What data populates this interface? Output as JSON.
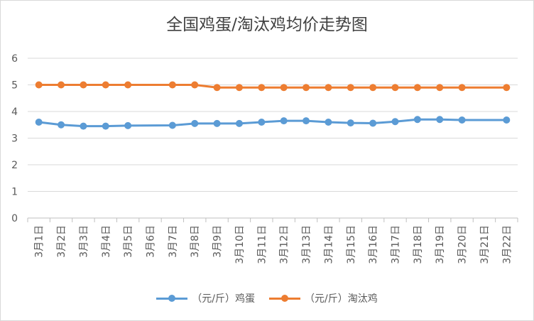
{
  "chart_data": {
    "type": "line",
    "title": "全国鸡蛋/淘汰鸡均价走势图",
    "categories": [
      "3月1日",
      "3月2日",
      "3月3日",
      "3月4日",
      "3月5日",
      "3月6日",
      "3月7日",
      "3月8日",
      "3月9日",
      "3月10日",
      "3月11日",
      "3月12日",
      "3月13日",
      "3月14日",
      "3月15日",
      "3月16日",
      "3月17日",
      "3月18日",
      "3月19日",
      "3月20日",
      "3月21日",
      "3月22日"
    ],
    "series": [
      {
        "name": "（元/斤）鸡蛋",
        "color": "#5b9bd5",
        "values": [
          3.6,
          3.5,
          3.45,
          3.45,
          3.47,
          null,
          3.48,
          3.55,
          3.55,
          3.55,
          3.6,
          3.65,
          3.65,
          3.6,
          3.57,
          3.56,
          3.62,
          3.7,
          3.7,
          3.68,
          null,
          3.68
        ]
      },
      {
        "name": "（元/斤）淘汰鸡",
        "color": "#ed7d31",
        "values": [
          5.0,
          5.0,
          5.0,
          5.0,
          5.0,
          null,
          5.0,
          5.0,
          4.9,
          4.9,
          4.9,
          4.9,
          4.9,
          4.9,
          4.9,
          4.9,
          4.9,
          4.9,
          4.9,
          4.9,
          null,
          4.9
        ]
      }
    ],
    "ylim": [
      0,
      6
    ],
    "yticks": [
      "0",
      "1",
      "2",
      "3",
      "4",
      "5",
      "6"
    ],
    "grid": true,
    "legend": "bottom"
  }
}
